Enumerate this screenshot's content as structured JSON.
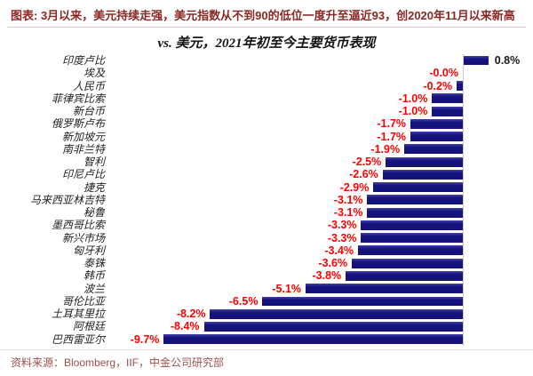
{
  "header": {
    "text": "图表: 3月以来，美元持续走强，美元指数从不到90的低位一度升至逼近93，创2020年11月以来新高"
  },
  "footer": {
    "text": "资料来源：Bloomberg，IIF，中金公司研究部"
  },
  "colors": {
    "bar": "#15127c",
    "bar_highlight": "#4340a8",
    "negative_label": "#fe0000",
    "positive_label": "#1a1a1a",
    "category_label": "#222222",
    "header_text": "#8a2823",
    "footer_text": "#9d5048",
    "header_rule": "#e3cccc",
    "footer_rule": "#e2dcdc",
    "axis_line": "#cccccc",
    "background": "#ffffff"
  },
  "chart_data": {
    "type": "bar",
    "orientation": "horizontal",
    "title": "vs. 美元，2021年初至今主要货币表现",
    "xlabel": "",
    "ylabel": "",
    "unit": "%",
    "xlim": [
      -10.5,
      1.5
    ],
    "grid": false,
    "legend_position": "none",
    "categories": [
      "印度卢比",
      "埃及",
      "人民币",
      "菲律宾比索",
      "新台币",
      "俄罗斯卢布",
      "新加坡元",
      "南非兰特",
      "智利",
      "印尼卢比",
      "捷克",
      "马来西亚林吉特",
      "秘鲁",
      "墨西哥比索",
      "新兴市场",
      "匈牙利",
      "泰铢",
      "韩币",
      "波兰",
      "哥伦比亚",
      "土耳其里拉",
      "阿根廷",
      "巴西雷亚尔"
    ],
    "values": [
      0.8,
      -0.0,
      -0.2,
      -1.0,
      -1.0,
      -1.7,
      -1.7,
      -1.9,
      -2.5,
      -2.6,
      -2.9,
      -3.1,
      -3.1,
      -3.3,
      -3.3,
      -3.4,
      -3.6,
      -3.8,
      -5.1,
      -6.5,
      -8.2,
      -8.4,
      -9.7
    ],
    "value_labels": [
      "0.8%",
      "-0.0%",
      "-0.2%",
      "-1.0%",
      "-1.0%",
      "-1.7%",
      "-1.7%",
      "-1.9%",
      "-2.5%",
      "-2.6%",
      "-2.9%",
      "-3.1%",
      "-3.1%",
      "-3.3%",
      "-3.3%",
      "-3.4%",
      "-3.6%",
      "-3.8%",
      "-5.1%",
      "-6.5%",
      "-8.2%",
      "-8.4%",
      "-9.7%"
    ]
  }
}
